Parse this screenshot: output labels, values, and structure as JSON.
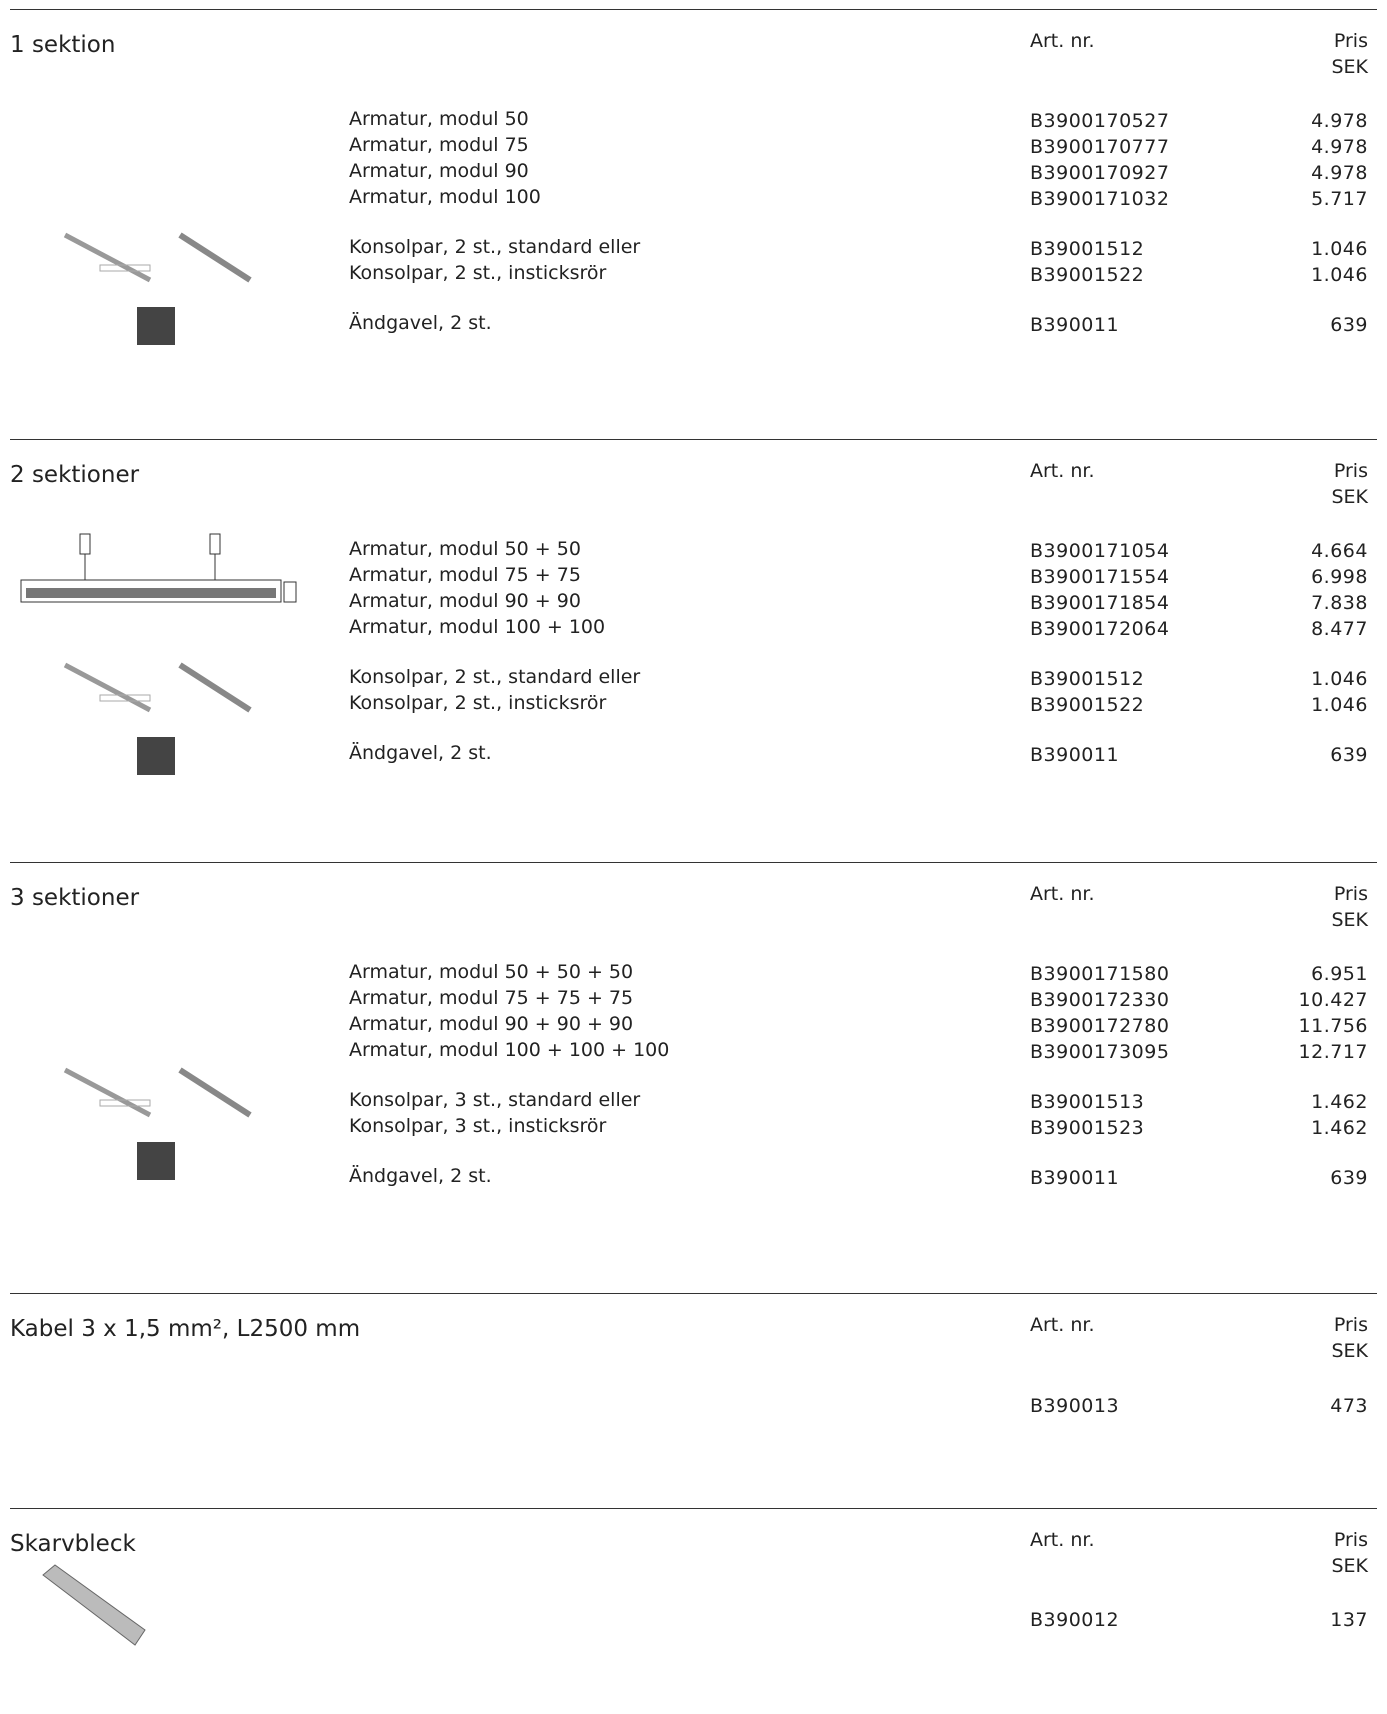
{
  "columns": {
    "art": "Art. nr.",
    "price": [
      "Pris",
      "SEK"
    ]
  },
  "sections": [
    {
      "title": "1 sektion",
      "groups": [
        [
          {
            "desc": "Armatur, modul 50",
            "art": "B3900170527",
            "price": "4.978"
          },
          {
            "desc": "Armatur, modul 75",
            "art": "B3900170777",
            "price": "4.978"
          },
          {
            "desc": "Armatur, modul 90",
            "art": "B3900170927",
            "price": "4.978"
          },
          {
            "desc": "Armatur, modul 100",
            "art": "B3900171032",
            "price": "5.717"
          }
        ],
        [
          {
            "desc": "Konsolpar, 2 st., standard eller",
            "art": "B39001512",
            "price": "1.046"
          },
          {
            "desc": "Konsolpar, 2 st., insticksrör",
            "art": "B39001522",
            "price": "1.046"
          }
        ],
        [
          {
            "desc": "Ändgavel, 2 st.",
            "art": "B390011",
            "price": "639"
          }
        ]
      ]
    },
    {
      "title": "2 sektioner",
      "groups": [
        [
          {
            "desc": "Armatur, modul 50 + 50",
            "art": "B3900171054",
            "price": "4.664"
          },
          {
            "desc": "Armatur, modul 75 + 75",
            "art": "B3900171554",
            "price": "6.998"
          },
          {
            "desc": "Armatur, modul 90 + 90",
            "art": "B3900171854",
            "price": "7.838"
          },
          {
            "desc": "Armatur, modul 100 + 100",
            "art": "B3900172064",
            "price": "8.477"
          }
        ],
        [
          {
            "desc": "Konsolpar, 2 st., standard eller",
            "art": "B39001512",
            "price": "1.046"
          },
          {
            "desc": "Konsolpar, 2 st., insticksrör",
            "art": "B39001522",
            "price": "1.046"
          }
        ],
        [
          {
            "desc": "Ändgavel, 2 st.",
            "art": "B390011",
            "price": "639"
          }
        ]
      ]
    },
    {
      "title": "3 sektioner",
      "groups": [
        [
          {
            "desc": "Armatur, modul 50 + 50 + 50",
            "art": "B3900171580",
            "price": "6.951"
          },
          {
            "desc": "Armatur, modul 75 + 75 + 75",
            "art": "B3900172330",
            "price": "10.427"
          },
          {
            "desc": "Armatur, modul 90 + 90 + 90",
            "art": "B3900172780",
            "price": "11.756"
          },
          {
            "desc": "Armatur, modul 100 + 100 + 100",
            "art": "B3900173095",
            "price": "12.717"
          }
        ],
        [
          {
            "desc": "Konsolpar, 3 st., standard eller",
            "art": "B39001513",
            "price": "1.462"
          },
          {
            "desc": "Konsolpar, 3 st., insticksrör",
            "art": "B39001523",
            "price": "1.462"
          }
        ],
        [
          {
            "desc": "Ändgavel, 2 st.",
            "art": "B390011",
            "price": "639"
          }
        ]
      ]
    },
    {
      "title": "Kabel 3 x 1,5 mm², L2500 mm",
      "groups": [
        [
          {
            "art": "B390013",
            "price": "473"
          }
        ]
      ]
    },
    {
      "title": "Skarvbleck",
      "groups": [
        [
          {
            "art": "B390012",
            "price": "137"
          }
        ]
      ]
    }
  ]
}
